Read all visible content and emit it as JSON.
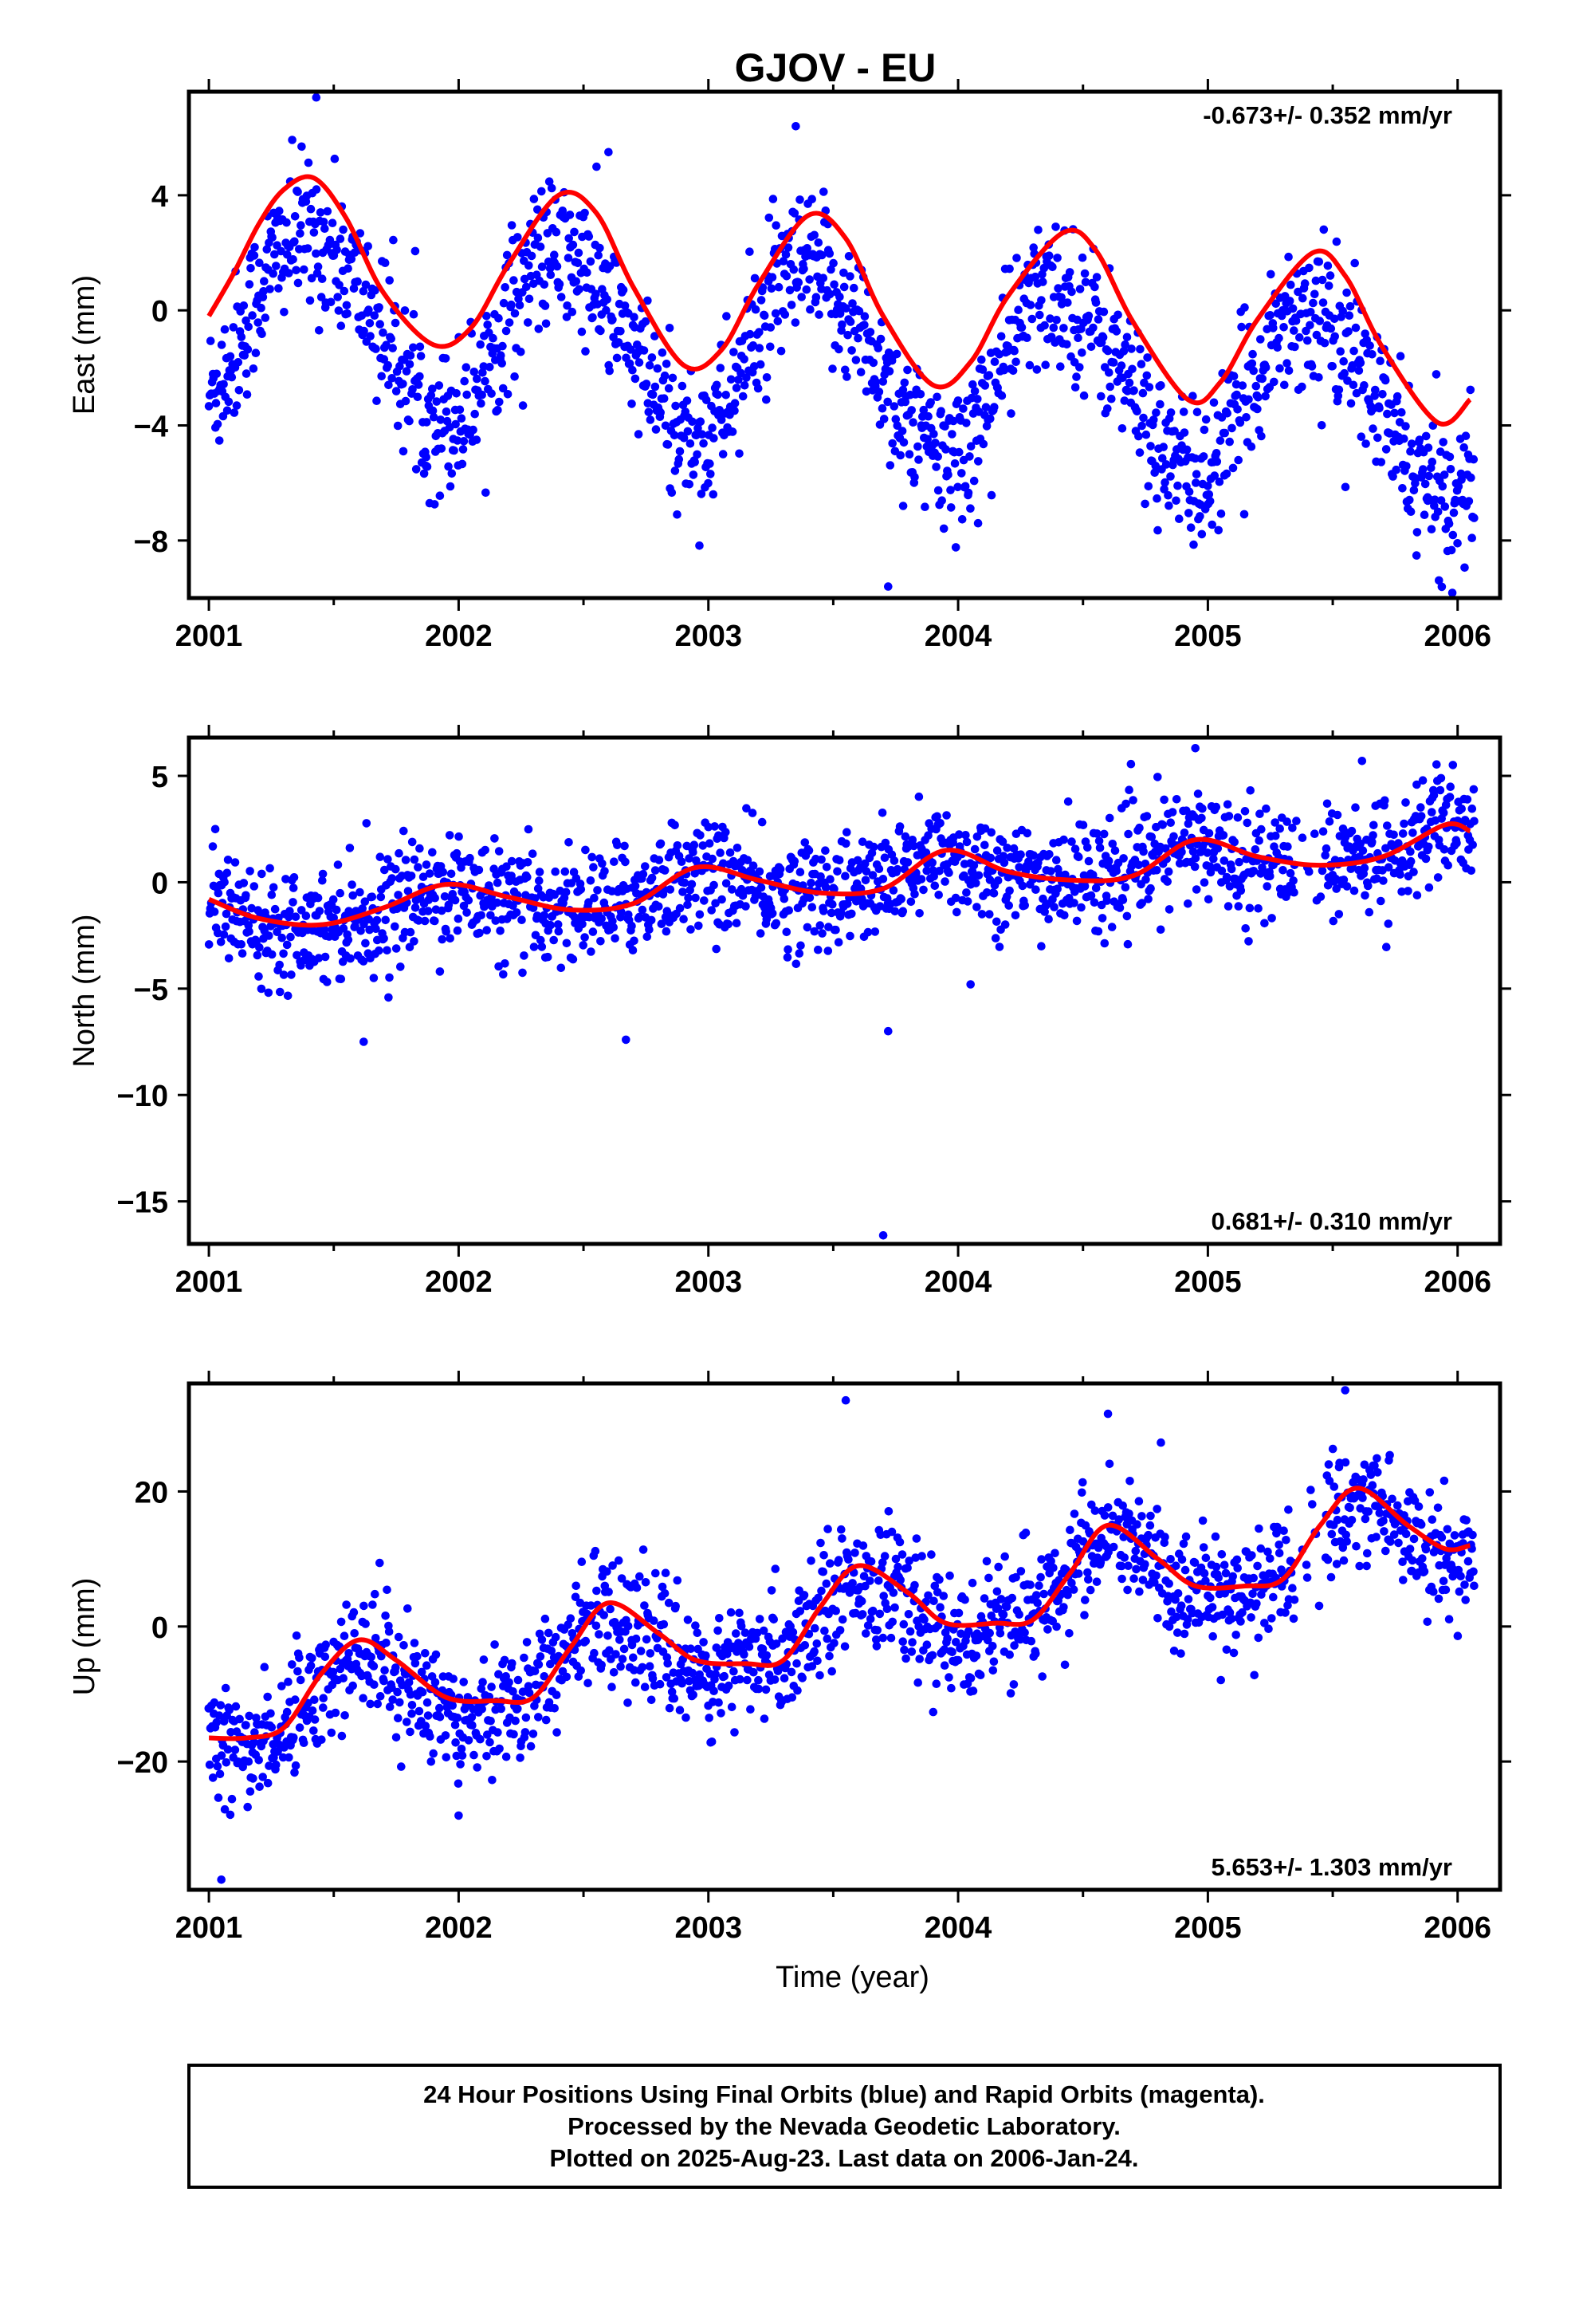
{
  "page": {
    "title": "GJOV - EU",
    "footer_lines": [
      "24 Hour Positions Using Final Orbits (blue) and Rapid Orbits (magenta).",
      "Processed by the Nevada Geodetic Laboratory.",
      "Plotted on 2025-Aug-23. Last data on 2006-Jan-24."
    ]
  },
  "colors": {
    "points": "#0000ff",
    "fit": "#ff0000",
    "frame": "#000000"
  },
  "chart_data": [
    {
      "type": "scatter",
      "component": "east",
      "ylabel": "East (mm)",
      "xlabel": "",
      "xlim": [
        2000.92,
        2006.17
      ],
      "ylim": [
        -10,
        7.6
      ],
      "xticks": [
        2001,
        2002,
        2003,
        2004,
        2005,
        2006
      ],
      "yticks": [
        -8,
        -4,
        0,
        4
      ],
      "rate_label": "-0.673+/- 0.352 mm/yr",
      "rate_position": "top-right",
      "model": {
        "offset": 0.0,
        "trend": -0.673,
        "annual_amp": 3.0,
        "annual_phase_peak": 0.42,
        "semiannual_amp": 0.3,
        "semiannual_phase_peak": 0.25,
        "scatter_sd": 1.3
      },
      "fit": {
        "x": [
          2001.0,
          2001.1,
          2001.2,
          2001.3,
          2001.42,
          2001.55,
          2001.7,
          2001.9,
          2002.05,
          2002.2,
          2002.4,
          2002.55,
          2002.7,
          2002.9,
          2003.05,
          2003.2,
          2003.4,
          2003.55,
          2003.7,
          2003.9,
          2004.05,
          2004.2,
          2004.42,
          2004.55,
          2004.7,
          2004.92,
          2005.05,
          2005.2,
          2005.42,
          2005.55,
          2005.7,
          2005.92,
          2006.05
        ],
        "y": [
          -0.2,
          1.3,
          3.0,
          4.2,
          4.6,
          3.2,
          0.6,
          -1.2,
          -0.6,
          1.6,
          4.0,
          3.4,
          0.8,
          -1.9,
          -1.4,
          0.9,
          3.3,
          2.5,
          -0.2,
          -2.6,
          -1.8,
          0.5,
          2.7,
          2.1,
          -0.4,
          -3.1,
          -2.5,
          -0.3,
          2.0,
          1.2,
          -1.3,
          -3.9,
          -3.1
        ]
      },
      "outliers": [
        {
          "x": 2001.15,
          "y": -2.2
        },
        {
          "x": 2001.43,
          "y": 7.4
        },
        {
          "x": 2001.87,
          "y": -5.1
        },
        {
          "x": 2002.6,
          "y": 5.5
        },
        {
          "x": 2003.35,
          "y": 6.4
        },
        {
          "x": 2003.72,
          "y": -9.6
        },
        {
          "x": 2003.78,
          "y": -6.8
        },
        {
          "x": 2004.08,
          "y": -7.4
        },
        {
          "x": 2005.88,
          "y": -6.5
        }
      ]
    },
    {
      "type": "scatter",
      "component": "north",
      "ylabel": "North (mm)",
      "xlabel": "",
      "xlim": [
        2000.92,
        2006.17
      ],
      "ylim": [
        -17,
        6.8
      ],
      "xticks": [
        2001,
        2002,
        2003,
        2004,
        2005,
        2006
      ],
      "yticks": [
        -15,
        -10,
        -5,
        0,
        5
      ],
      "rate_label": "0.681+/- 0.310 mm/yr",
      "rate_position": "bottom-right",
      "model": {
        "offset": -1.7,
        "trend": 0.681,
        "annual_amp": 0.6,
        "annual_phase_peak": 0.95,
        "semiannual_amp": 0.2,
        "semiannual_phase_peak": 0.45,
        "scatter_sd": 1.3
      },
      "fit": {
        "x": [
          2001.0,
          2001.2,
          2001.45,
          2001.7,
          2001.95,
          2002.2,
          2002.45,
          2002.7,
          2002.95,
          2003.2,
          2003.45,
          2003.7,
          2003.95,
          2004.2,
          2004.45,
          2004.7,
          2004.95,
          2005.2,
          2005.45,
          2005.7,
          2005.95,
          2006.05
        ],
        "y": [
          -0.8,
          -1.7,
          -2.0,
          -1.2,
          -0.1,
          -0.7,
          -1.3,
          -1.0,
          0.7,
          0.1,
          -0.5,
          -0.3,
          1.5,
          0.5,
          0.1,
          0.3,
          2.0,
          1.2,
          0.8,
          1.2,
          2.7,
          2.4
        ]
      },
      "outliers": [
        {
          "x": 2001.62,
          "y": -7.5
        },
        {
          "x": 2002.67,
          "y": -7.4
        },
        {
          "x": 2003.72,
          "y": -7.0
        },
        {
          "x": 2003.7,
          "y": -16.6
        },
        {
          "x": 2004.05,
          "y": -4.8
        },
        {
          "x": 2004.95,
          "y": 6.3
        }
      ]
    },
    {
      "type": "scatter",
      "component": "up",
      "ylabel": "Up (mm)",
      "xlabel": "Time (year)",
      "xlim": [
        2000.92,
        2006.17
      ],
      "ylim": [
        -39,
        36
      ],
      "xticks": [
        2001,
        2002,
        2003,
        2004,
        2005,
        2006
      ],
      "yticks": [
        -20,
        0,
        20
      ],
      "rate_label": "5.653+/- 1.303 mm/yr",
      "rate_position": "bottom-right",
      "model": {
        "offset": -14.0,
        "trend": 5.653,
        "annual_amp": 5.5,
        "annual_phase_peak": 0.6,
        "semiannual_amp": 1.0,
        "semiannual_phase_peak": 0.6,
        "scatter_sd": 4.5
      },
      "fit": {
        "x": [
          2001.0,
          2001.15,
          2001.3,
          2001.45,
          2001.6,
          2001.75,
          2001.95,
          2002.15,
          2002.3,
          2002.45,
          2002.6,
          2002.8,
          2002.95,
          2003.15,
          2003.3,
          2003.45,
          2003.6,
          2003.8,
          2003.95,
          2004.15,
          2004.3,
          2004.45,
          2004.6,
          2004.8,
          2004.95,
          2005.15,
          2005.3,
          2005.45,
          2005.6,
          2005.8,
          2005.95,
          2006.05
        ],
        "y": [
          -16.5,
          -16.5,
          -15.0,
          -7.0,
          -2.0,
          -5.0,
          -10.5,
          -11.0,
          -10.5,
          -3.0,
          3.5,
          -1.0,
          -5.0,
          -5.5,
          -5.0,
          3.0,
          9.0,
          5.0,
          0.5,
          0.5,
          1.0,
          8.0,
          15.0,
          10.0,
          6.0,
          6.0,
          7.0,
          15.0,
          20.5,
          15.0,
          11.5,
          12.0
        ]
      },
      "outliers": [
        {
          "x": 2001.05,
          "y": -37.5
        },
        {
          "x": 2003.55,
          "y": 33.5
        },
        {
          "x": 2005.55,
          "y": 35
        },
        {
          "x": 2004.6,
          "y": 31.5
        },
        {
          "x": 2002.0,
          "y": -28.0
        }
      ]
    }
  ]
}
